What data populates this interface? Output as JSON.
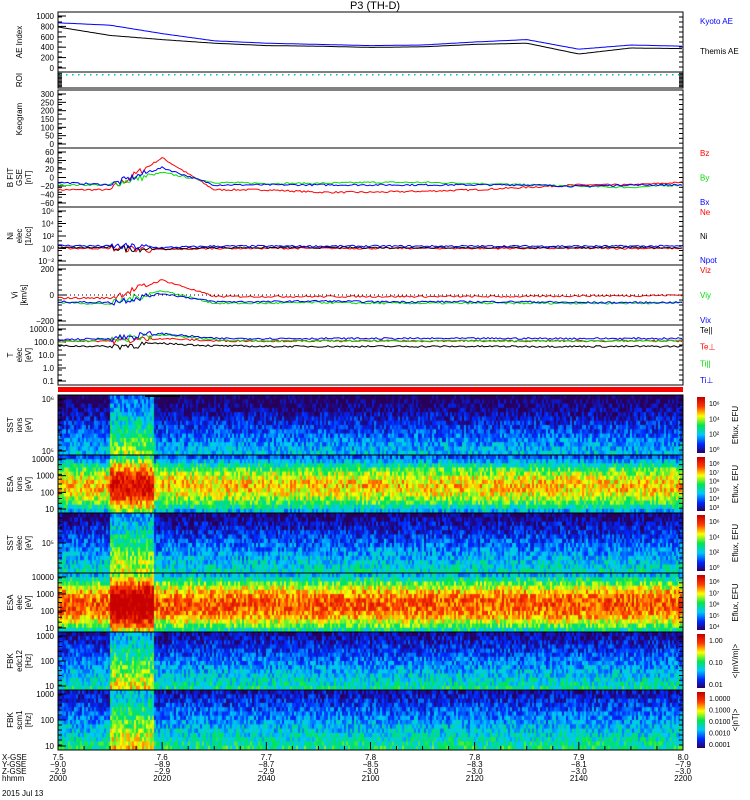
{
  "title": "P3 (TH-D)",
  "chart_data": [
    {
      "type": "line",
      "id": "ae",
      "ylabel": "AE Index",
      "ylim": [
        0,
        1000
      ],
      "yticks": [
        "1000",
        "800",
        "600",
        "400",
        "200",
        "0"
      ],
      "x": [
        2000,
        2010,
        2020,
        2030,
        2040,
        2050,
        2100,
        2110,
        2120,
        2130,
        2140,
        2150,
        2200
      ],
      "series": [
        {
          "name": "Kyoto AE",
          "color": "#0000ff",
          "values": [
            820,
            780,
            640,
            520,
            480,
            460,
            440,
            450,
            500,
            540,
            380,
            450,
            430
          ]
        },
        {
          "name": "Themis AE",
          "color": "#000000",
          "values": [
            750,
            610,
            540,
            480,
            440,
            430,
            410,
            420,
            460,
            480,
            300,
            400,
            390
          ]
        }
      ]
    },
    {
      "type": "line",
      "id": "roi",
      "ylabel": "ROI"
    },
    {
      "type": "line",
      "id": "keogram",
      "ylabel": "Keogram",
      "ylim": [
        0,
        300
      ],
      "yticks": [
        "300",
        "250",
        "200",
        "150",
        "100",
        "50",
        "0"
      ]
    },
    {
      "type": "line",
      "id": "bfit",
      "ylabel": "B FIT",
      "sublabel": "GSE",
      "unit": "[nT]",
      "ylim": [
        -60,
        60
      ],
      "yticks": [
        "60",
        "40",
        "20",
        "0",
        "−20",
        "−40",
        "−60"
      ],
      "series": [
        {
          "name": "Bz",
          "color": "#ff0000",
          "values": [
            -25,
            -25,
            40,
            -25,
            -25,
            -30,
            -30,
            -28,
            -25,
            -20,
            -15,
            -15,
            -10
          ]
        },
        {
          "name": "By",
          "color": "#00dd00",
          "values": [
            -15,
            -15,
            10,
            -10,
            -12,
            -12,
            -10,
            -10,
            -12,
            -15,
            -18,
            -20,
            -15
          ]
        },
        {
          "name": "Bx",
          "color": "#0000ff",
          "values": [
            -10,
            -15,
            20,
            -15,
            -15,
            -15,
            -15,
            -15,
            -15,
            -15,
            -18,
            -15,
            -15
          ]
        }
      ]
    },
    {
      "type": "line",
      "id": "ni",
      "ylabel": "Ni",
      "sublabel": "elec",
      "unit": "[1/cc]",
      "ylim": [
        -2,
        6
      ],
      "yticks": [
        "10⁶",
        "10⁴",
        "10²",
        "10⁰",
        "10⁻²"
      ],
      "series": [
        {
          "name": "Ne",
          "color": "#ff0000",
          "values": [
            0.3,
            0.3,
            0.1,
            0.3,
            0.3,
            0.3,
            0.3,
            0.3,
            0.3,
            0.3,
            0.3,
            0.3,
            0.3
          ]
        },
        {
          "name": "Ni",
          "color": "#000000",
          "values": [
            0.4,
            0.4,
            0.2,
            0.4,
            0.4,
            0.4,
            0.4,
            0.4,
            0.4,
            0.4,
            0.4,
            0.4,
            0.4
          ]
        },
        {
          "name": "Npot",
          "color": "#0000ff",
          "values": [
            0.7,
            0.6,
            0.4,
            0.6,
            0.6,
            0.6,
            0.6,
            0.6,
            0.6,
            0.6,
            0.6,
            0.6,
            0.6
          ]
        }
      ]
    },
    {
      "type": "line",
      "id": "vi",
      "ylabel": "Vi",
      "unit": "[km/s]",
      "ylim": [
        -400,
        400
      ],
      "yticks": [
        "200",
        "0",
        "−200"
      ],
      "series": [
        {
          "name": "Viz",
          "color": "#ff0000",
          "values": [
            -40,
            -40,
            200,
            -20,
            -20,
            -20,
            -20,
            -20,
            -20,
            -20,
            -10,
            -10,
            0
          ]
        },
        {
          "name": "Viy",
          "color": "#00dd00",
          "values": [
            -100,
            -120,
            60,
            -110,
            -110,
            -100,
            -110,
            -110,
            -110,
            -110,
            -110,
            -110,
            -100
          ]
        },
        {
          "name": "Vix",
          "color": "#0000ff",
          "values": [
            -90,
            -100,
            20,
            -90,
            -90,
            -80,
            -90,
            -90,
            -90,
            -90,
            -100,
            -100,
            -100
          ]
        }
      ]
    },
    {
      "type": "line",
      "id": "t",
      "ylabel": "T",
      "sublabel": "elec",
      "unit": "[eV]",
      "ylim": [
        -1.3,
        3.6
      ],
      "yticks": [
        "1000.0",
        "100.0",
        "10.0",
        "1.0",
        "0.1"
      ],
      "series": [
        {
          "name": "Te||",
          "color": "#000000",
          "values": [
            1.9,
            1.85,
            2.1,
            1.9,
            1.85,
            1.85,
            1.85,
            1.85,
            1.85,
            1.85,
            1.85,
            1.85,
            1.85
          ]
        },
        {
          "name": "Te⊥",
          "color": "#ff0000",
          "values": [
            2.3,
            2.3,
            2.5,
            2.3,
            2.3,
            2.3,
            2.3,
            2.3,
            2.3,
            2.3,
            2.3,
            2.3,
            2.3
          ]
        },
        {
          "name": "Ti||",
          "color": "#00dd00",
          "values": [
            2.2,
            2.4,
            2.8,
            2.4,
            2.3,
            2.3,
            2.3,
            2.3,
            2.3,
            2.3,
            2.3,
            2.3,
            2.3
          ]
        },
        {
          "name": "Ti⊥",
          "color": "#0000ff",
          "values": [
            2.4,
            2.5,
            2.9,
            2.5,
            2.5,
            2.5,
            2.5,
            2.5,
            2.5,
            2.5,
            2.5,
            2.5,
            2.5
          ]
        }
      ]
    },
    {
      "type": "heatmap",
      "id": "sst_ion",
      "ylabel": "SST",
      "sublabel": "ions",
      "unit": "[eV]",
      "yticks": [
        "10⁶",
        "10⁵"
      ],
      "zlabel": "Eflux, EFU",
      "zticks": [
        "10⁶",
        "10⁴",
        "10²",
        "10⁰"
      ],
      "level": 0.2
    },
    {
      "type": "heatmap",
      "id": "esa_ion",
      "ylabel": "ESA",
      "sublabel": "ions",
      "unit": "[eV]",
      "yticks": [
        "10000",
        "1000",
        "100",
        "10"
      ],
      "zlabel": "Eflux, EFU",
      "zticks": [
        "10⁸",
        "10⁷",
        "10⁶",
        "10⁵",
        "10⁴",
        "10³"
      ],
      "level": 0.6
    },
    {
      "type": "heatmap",
      "id": "sst_elec",
      "ylabel": "SST",
      "sublabel": "elec",
      "unit": "[eV]",
      "yticks": [
        "10⁵"
      ],
      "zlabel": "Eflux, EFU",
      "zticks": [
        "10⁶",
        "10⁴",
        "10²",
        "10⁰"
      ],
      "level": 0.3
    },
    {
      "type": "heatmap",
      "id": "esa_elec",
      "ylabel": "ESA",
      "sublabel": "elec",
      "unit": "[eV]",
      "yticks": [
        "10000",
        "1000",
        "100",
        "10"
      ],
      "zlabel": "Eflux, EFU",
      "zticks": [
        "10⁸",
        "10⁷",
        "10⁶",
        "10⁵",
        "10⁴"
      ],
      "level": 0.8
    },
    {
      "type": "heatmap",
      "id": "fbk_edc",
      "ylabel": "FBK",
      "sublabel": "edc12",
      "unit": "[Hz]",
      "yticks": [
        "1000",
        "100",
        "10"
      ],
      "zlabel": "<|mV/m|>",
      "zticks": [
        "1.00",
        "0.10",
        "0.01"
      ],
      "level": 0.35
    },
    {
      "type": "heatmap",
      "id": "fbk_scm",
      "ylabel": "FBK",
      "sublabel": "scm1",
      "unit": "[Hz]",
      "yticks": [
        "1000",
        "100",
        "10"
      ],
      "zlabel": "<|nT|>",
      "zticks": [
        "1.0000",
        "0.1000",
        "0.0100",
        "0.0010",
        "0.0001"
      ],
      "level": 0.4
    }
  ],
  "xaxis": {
    "rows": [
      {
        "label": "X-GSE",
        "values": [
          "7.5",
          "7.6",
          "7.7",
          "7.8",
          "7.8",
          "7.9",
          "8.0"
        ]
      },
      {
        "label": "Y-GSE",
        "values": [
          "−9.0",
          "−8.9",
          "−8.7",
          "−8.5",
          "−8.3",
          "−8.1",
          "−7.9"
        ]
      },
      {
        "label": "Z-GSE",
        "values": [
          "−2.9",
          "−2.9",
          "−2.9",
          "−3.0",
          "−3.0",
          "−3.0",
          "−3.0"
        ]
      },
      {
        "label": "hhmm",
        "values": [
          "2000",
          "2020",
          "2040",
          "2100",
          "2120",
          "2140",
          "2200"
        ]
      }
    ],
    "date": "2015 Jul 13"
  }
}
